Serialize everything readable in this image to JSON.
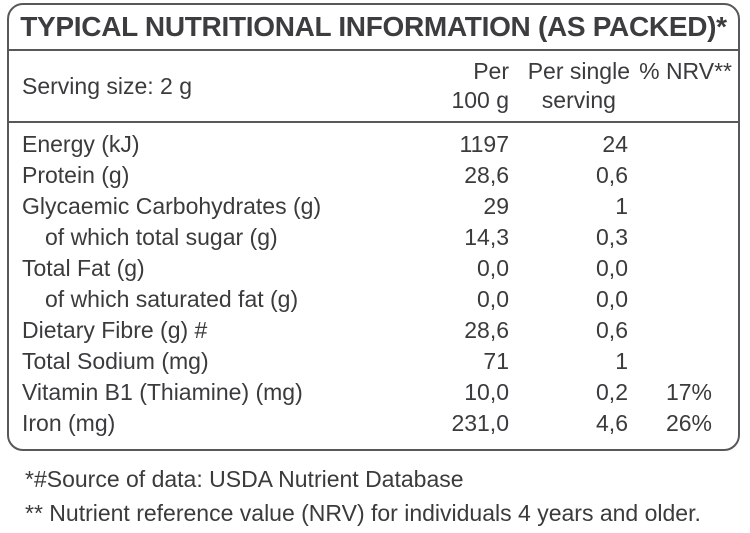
{
  "title": "TYPICAL NUTRITIONAL INFORMATION (AS PACKED)*",
  "header": {
    "serving_size": "Serving size: 2 g",
    "col1_line1": "Per",
    "col1_line2": "100 g",
    "col2_line1": "Per single",
    "col2_line2": "serving",
    "col3": "% NRV**"
  },
  "rows": [
    {
      "name": "Energy (kJ)",
      "per100": "1197",
      "serving": "24",
      "nrv": ""
    },
    {
      "name": "Protein (g)",
      "per100": "28,6",
      "serving": "0,6",
      "nrv": ""
    },
    {
      "name": "Glycaemic Carbohydrates (g)",
      "per100": "29",
      "serving": "1",
      "nrv": ""
    },
    {
      "name": "of which total sugar (g)",
      "per100": "14,3",
      "serving": "0,3",
      "nrv": ""
    },
    {
      "name": "Total Fat (g)",
      "per100": "0,0",
      "serving": "0,0",
      "nrv": ""
    },
    {
      "name": "of which saturated fat (g)",
      "per100": "0,0",
      "serving": "0,0",
      "nrv": ""
    },
    {
      "name": "Dietary Fibre (g) #",
      "per100": "28,6",
      "serving": "0,6",
      "nrv": ""
    },
    {
      "name": "Total Sodium (mg)",
      "per100": "71",
      "serving": "1",
      "nrv": ""
    },
    {
      "name": "Vitamin B1 (Thiamine) (mg)",
      "per100": "10,0",
      "serving": "0,2",
      "nrv": "17%"
    },
    {
      "name": "Iron (mg)",
      "per100": "231,0",
      "serving": "4,6",
      "nrv": "26%"
    }
  ],
  "footnotes": {
    "source": "*#Source of data: USDA Nutrient Database",
    "nrv": "** Nutrient reference value (NRV) for individuals 4 years and older."
  }
}
